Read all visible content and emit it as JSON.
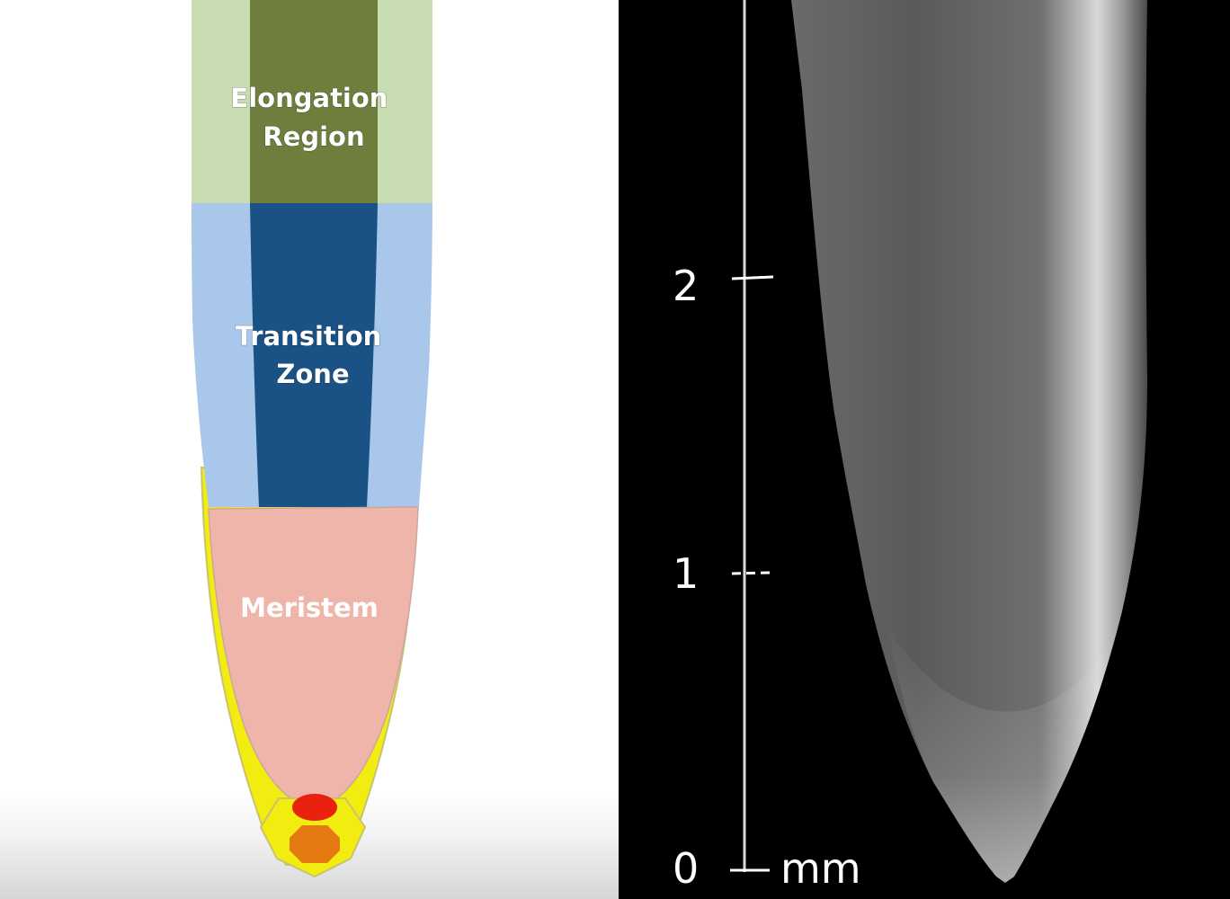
{
  "diagram": {
    "zones": [
      {
        "id": "elongation",
        "lines": [
          "Elongation",
          "Region"
        ],
        "outer_color": "#c9ddb2",
        "inner_color": "#6e7f3d"
      },
      {
        "id": "transition",
        "lines": [
          "Transition",
          "Zone"
        ],
        "outer_color": "#a9c7ea",
        "inner_color": "#1a5286"
      },
      {
        "id": "meristem",
        "lines": [
          "Meristem"
        ],
        "color": "#efb5ab"
      }
    ],
    "root_cap_color": "#f2ec10",
    "quiescent_center_color": "#e8220e",
    "columella_color": "#e57a12"
  },
  "scale_bar": {
    "ticks": [
      "2",
      "1",
      "0"
    ],
    "unit": "mm"
  }
}
